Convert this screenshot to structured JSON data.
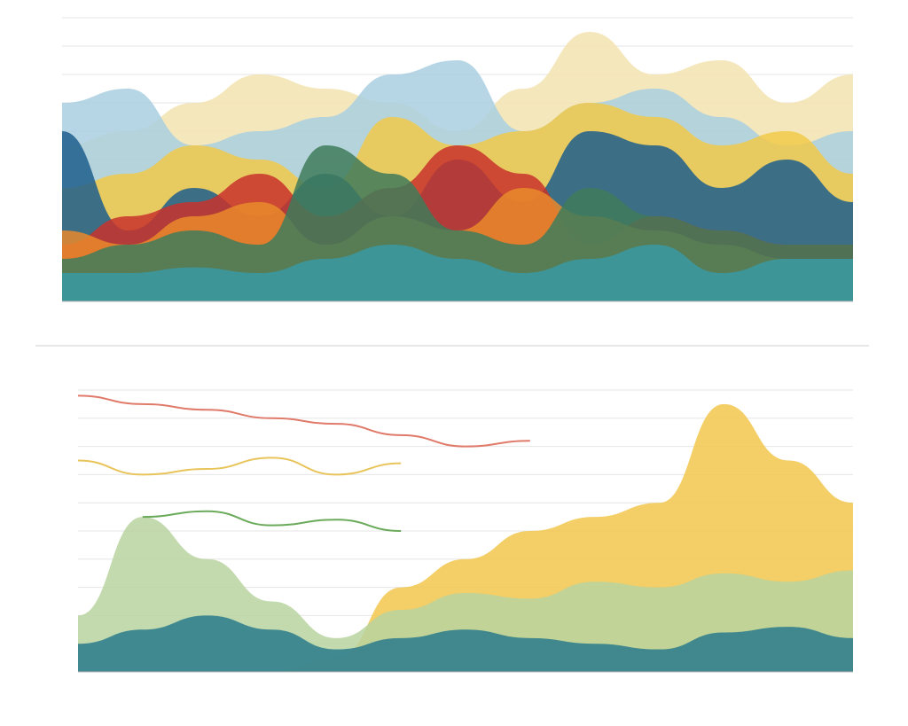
{
  "chart_data": [
    {
      "type": "area",
      "x": [
        0,
        1,
        2,
        3,
        4,
        5,
        6,
        7,
        8,
        9,
        10,
        11,
        12
      ],
      "xlim": [
        0,
        12
      ],
      "ylim": [
        0,
        100
      ],
      "grid": true,
      "series": [
        {
          "color": "#f3e3b0",
          "values": [
            55,
            60,
            70,
            80,
            75,
            70,
            60,
            75,
            95,
            80,
            85,
            70,
            80
          ]
        },
        {
          "color": "#a9cfe0",
          "values": [
            70,
            75,
            55,
            60,
            65,
            80,
            85,
            60,
            70,
            75,
            65,
            55,
            60
          ]
        },
        {
          "color": "#f1c94a",
          "values": [
            40,
            45,
            55,
            50,
            40,
            65,
            55,
            60,
            70,
            65,
            55,
            60,
            45
          ]
        },
        {
          "color": "#1d5e8c",
          "values": [
            60,
            25,
            40,
            30,
            45,
            30,
            50,
            35,
            60,
            55,
            40,
            50,
            35
          ]
        },
        {
          "color": "#c8332b",
          "values": [
            20,
            30,
            35,
            45,
            30,
            40,
            55,
            45,
            20,
            30,
            25,
            20,
            20
          ]
        },
        {
          "color": "#e98a2c",
          "values": [
            25,
            20,
            30,
            35,
            20,
            30,
            25,
            40,
            30,
            25,
            20,
            15,
            15
          ]
        },
        {
          "color": "#3f7b5a",
          "values": [
            15,
            20,
            25,
            20,
            55,
            45,
            25,
            20,
            40,
            30,
            25,
            20,
            20
          ]
        },
        {
          "color": "#3a9aa5",
          "values": [
            10,
            10,
            12,
            10,
            15,
            20,
            15,
            10,
            15,
            20,
            10,
            15,
            15
          ]
        }
      ]
    },
    {
      "type": "area",
      "x": [
        0,
        1,
        2,
        3,
        4,
        5,
        6,
        7,
        8,
        9,
        10,
        11,
        12
      ],
      "xlim": [
        0,
        12
      ],
      "ylim": [
        0,
        100
      ],
      "grid": true,
      "series": [
        {
          "color": "#f2c54b",
          "values": [
            0,
            0,
            0,
            0,
            5,
            30,
            40,
            50,
            55,
            60,
            95,
            75,
            60
          ]
        },
        {
          "color": "#b9d4a0",
          "values": [
            20,
            55,
            40,
            25,
            12,
            22,
            28,
            26,
            32,
            30,
            35,
            32,
            36
          ]
        },
        {
          "color": "#2a7a8c",
          "values": [
            10,
            15,
            20,
            15,
            8,
            12,
            15,
            12,
            10,
            8,
            14,
            16,
            12
          ]
        },
        {
          "color": "#e07a6a",
          "style": "line",
          "values": [
            98,
            95,
            93,
            90,
            88,
            84,
            80,
            82,
            null,
            null,
            null,
            null,
            null
          ]
        },
        {
          "color": "#e8c45a",
          "style": "line",
          "values": [
            75,
            70,
            72,
            76,
            70,
            74,
            null,
            null,
            null,
            null,
            null,
            null,
            null
          ]
        },
        {
          "color": "#6aaa5a",
          "style": "line",
          "values": [
            null,
            55,
            57,
            52,
            54,
            50,
            null,
            null,
            null,
            null,
            null,
            null,
            null
          ]
        }
      ]
    }
  ]
}
